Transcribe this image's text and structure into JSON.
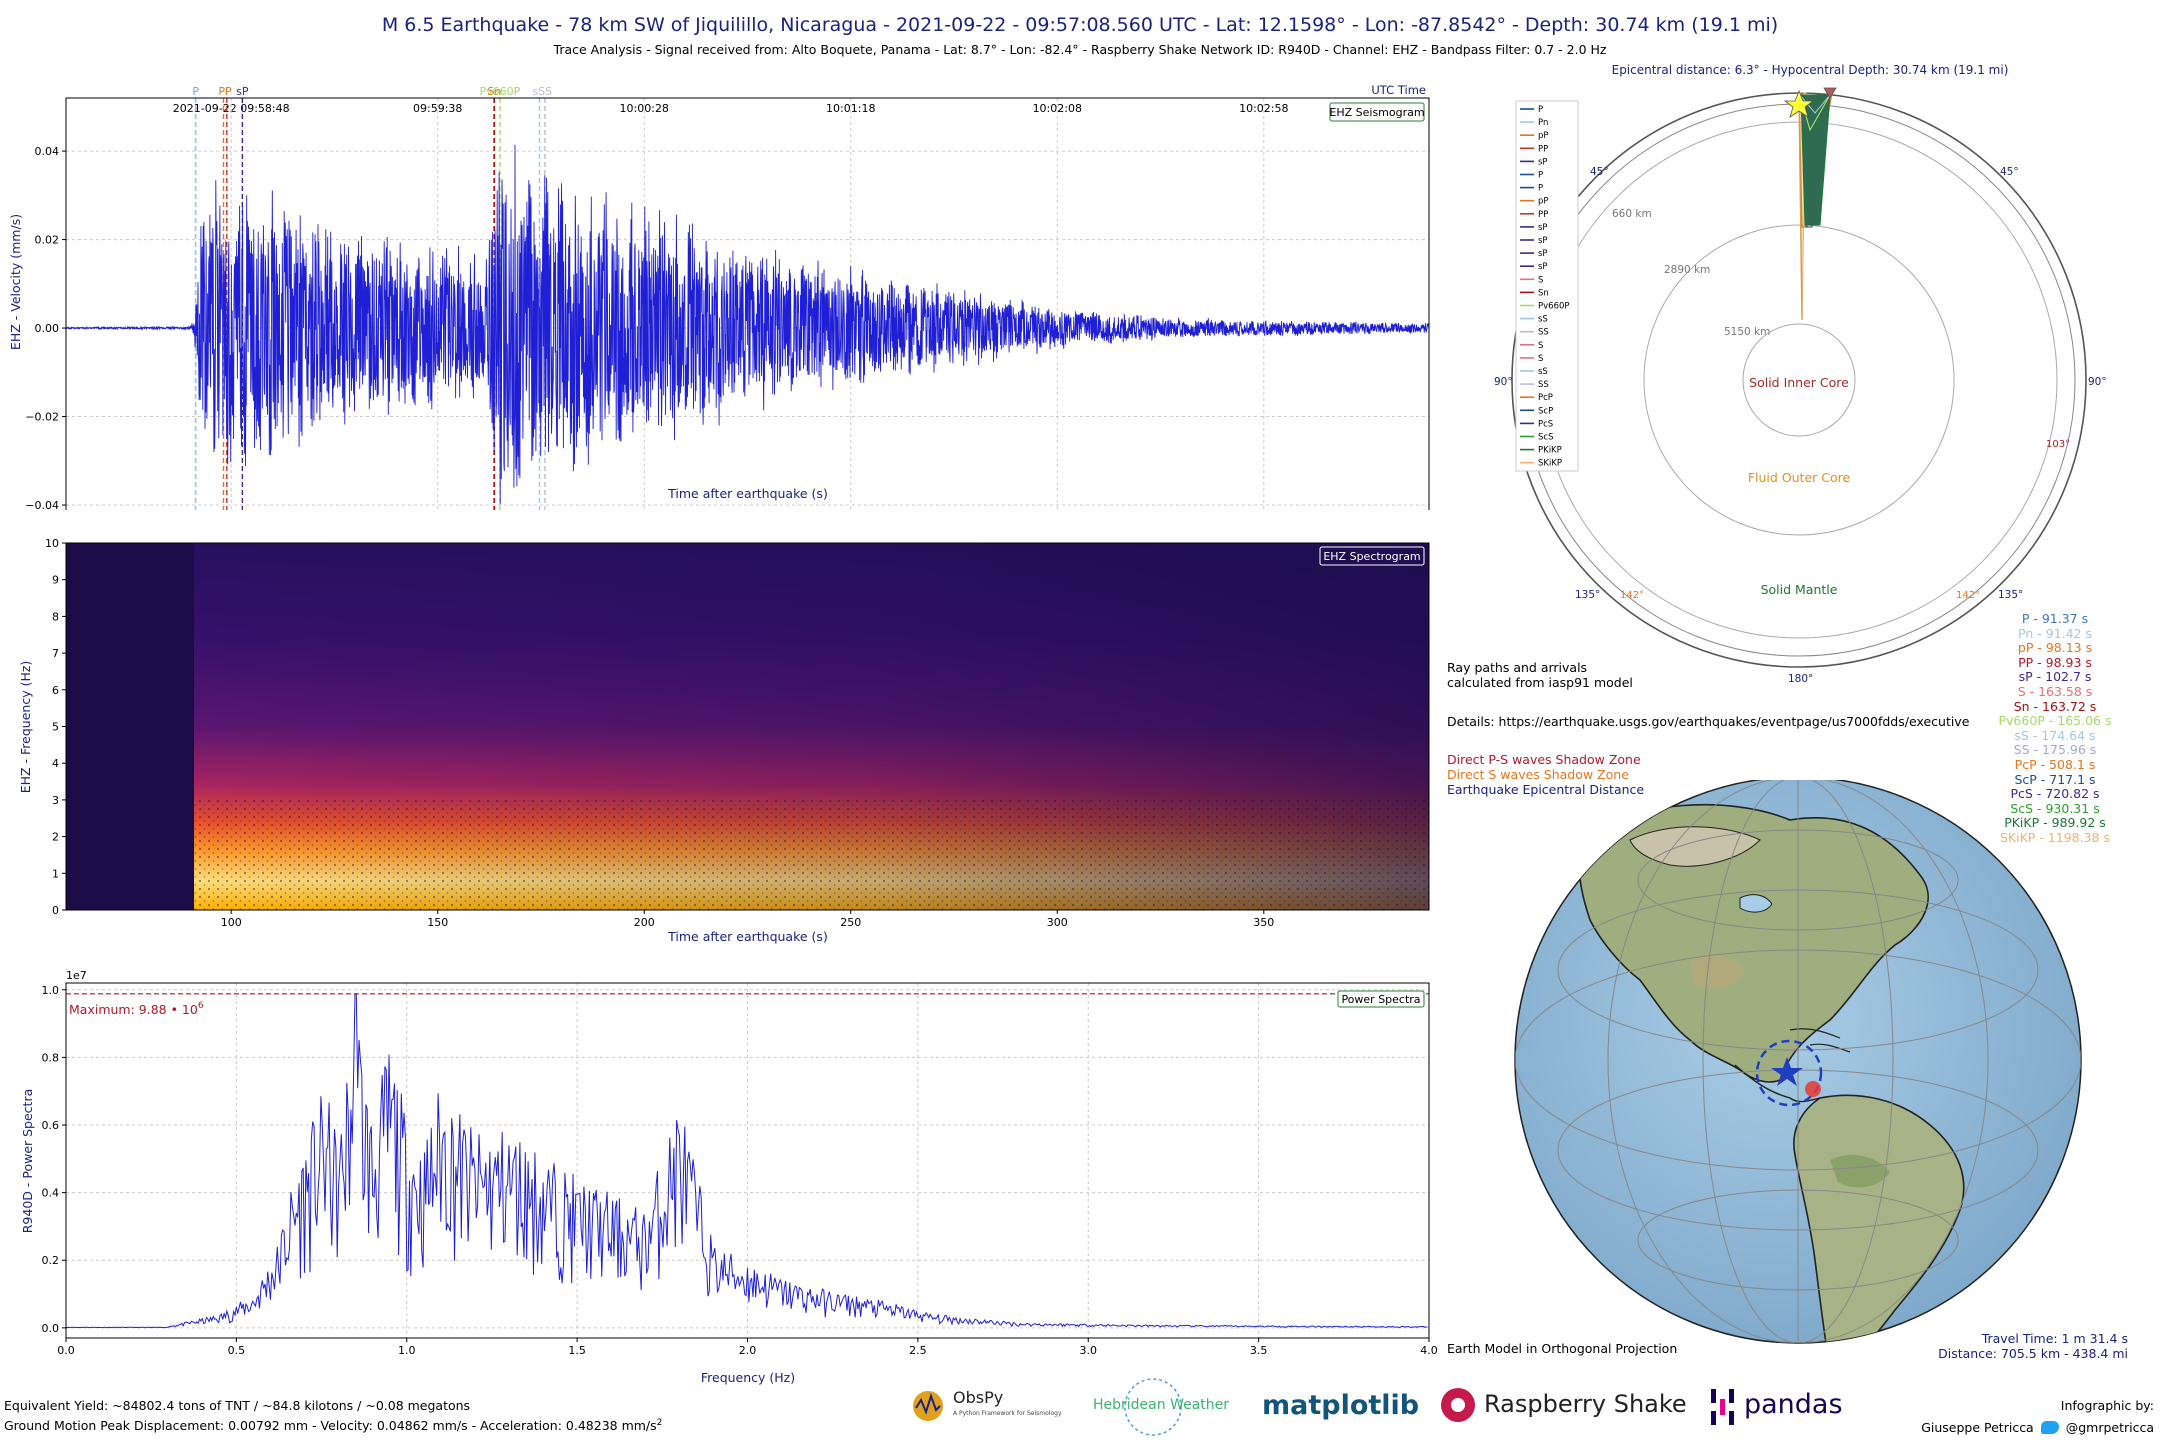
{
  "header": {
    "title": "M 6.5 Earthquake - 78 km SW of Jiquilillo, Nicaragua - 2021-09-22 - 09:57:08.560 UTC - Lat: 12.1598° - Lon: -87.8542° - Depth: 30.74 km (19.1 mi)",
    "subtitle": "Trace Analysis - Signal received from: Alto Boquete, Panama - Lat: 8.7° - Lon: -82.4° - Raspberry Shake Network ID: R940D - Channel: EHZ - Bandpass Filter: 0.7 - 2.0 Hz"
  },
  "chart_data": [
    {
      "type": "line",
      "panel": "seismogram",
      "badge": "EHZ Seismogram",
      "xlabel": "Time after earthquake (s)",
      "ylabel": "EHZ - Velocity (mm/s)",
      "xlim": [
        60,
        390
      ],
      "ylim": [
        -0.047,
        0.052
      ],
      "x_ticks": [
        100,
        150,
        200,
        250,
        300,
        350
      ],
      "y_ticks": [
        -0.04,
        -0.02,
        0.0,
        0.02,
        0.04
      ],
      "y_tick_labels": [
        "−0.04",
        "−0.02",
        "0.00",
        "0.02",
        "0.04"
      ],
      "top_axis_label": "UTC Time",
      "top_ticks": [
        {
          "t": 100,
          "label": "2021-09-22 09:58:48"
        },
        {
          "t": 150,
          "label": "09:59:38"
        },
        {
          "t": 200,
          "label": "10:00:28"
        },
        {
          "t": 250,
          "label": "10:01:18"
        },
        {
          "t": 300,
          "label": "10:02:08"
        },
        {
          "t": 350,
          "label": "10:02:58"
        }
      ],
      "phase_markers": [
        {
          "label": "P",
          "t": 91.37,
          "color": "#6baed6"
        },
        {
          "label": "Pn",
          "t": 91.42,
          "color": "#9ecae1"
        },
        {
          "label": "pP",
          "t": 98.13,
          "color": "#e6761f"
        },
        {
          "label": "PP",
          "t": 98.93,
          "color": "#c0392b"
        },
        {
          "label": "sP",
          "t": 102.7,
          "color": "#3b2a8f"
        },
        {
          "label": "S",
          "t": 163.58,
          "color": "#e8707a"
        },
        {
          "label": "Sn",
          "t": 163.72,
          "color": "#a50f15"
        },
        {
          "label": "Pv660P",
          "t": 165.06,
          "color": "#a6d96a"
        },
        {
          "label": "sS",
          "t": 174.64,
          "color": "#9ecae1"
        },
        {
          "label": "SS",
          "t": 175.96,
          "color": "#bcbddc"
        }
      ],
      "top_phase_labels": [
        {
          "text": "P",
          "t": 91.4,
          "color": "#6baed6"
        },
        {
          "text": "PP",
          "t": 98.5,
          "color": "#e6761f"
        },
        {
          "text": "sP",
          "t": 102.7,
          "color": "#3b2a8f"
        },
        {
          "text": "Pv660P",
          "t": 165.06,
          "color": "#a6d96a"
        },
        {
          "text": "Sn",
          "t": 163.7,
          "color": "#e6761f"
        },
        {
          "text": "sSS",
          "t": 175.3,
          "color": "#bcbddc"
        }
      ],
      "series": [
        {
          "color": "#1f1fd6",
          "envelope": [
            {
              "t": 60,
              "a": 0.0002
            },
            {
              "t": 90,
              "a": 0.0003
            },
            {
              "t": 91,
              "a": 0.003
            },
            {
              "t": 93,
              "a": 0.03
            },
            {
              "t": 96,
              "a": 0.04
            },
            {
              "t": 100,
              "a": 0.033
            },
            {
              "t": 106,
              "a": 0.036
            },
            {
              "t": 115,
              "a": 0.03
            },
            {
              "t": 130,
              "a": 0.024
            },
            {
              "t": 150,
              "a": 0.02
            },
            {
              "t": 162,
              "a": 0.018
            },
            {
              "t": 163.6,
              "a": 0.045
            },
            {
              "t": 170,
              "a": 0.044
            },
            {
              "t": 180,
              "a": 0.036
            },
            {
              "t": 200,
              "a": 0.03
            },
            {
              "t": 220,
              "a": 0.022
            },
            {
              "t": 250,
              "a": 0.015
            },
            {
              "t": 280,
              "a": 0.009
            },
            {
              "t": 300,
              "a": 0.005
            },
            {
              "t": 330,
              "a": 0.0025
            },
            {
              "t": 390,
              "a": 0.0012
            }
          ]
        }
      ]
    },
    {
      "type": "heatmap",
      "panel": "spectrogram",
      "badge": "EHZ Spectrogram",
      "xlabel": "Time after earthquake (s)",
      "ylabel": "EHZ - Frequency (Hz)",
      "xlim": [
        60,
        390
      ],
      "ylim": [
        0,
        10
      ],
      "x_ticks": [
        100,
        150,
        200,
        250,
        300,
        350
      ],
      "y_ticks": [
        0,
        1,
        2,
        3,
        4,
        5,
        6,
        7,
        8,
        9,
        10
      ],
      "onset_t": 91,
      "band_hz": [
        0.7,
        2.0
      ]
    },
    {
      "type": "line",
      "panel": "power-spectra",
      "badge": "Power Spectra",
      "xlabel": "Frequency (Hz)",
      "ylabel": "R940D - Power Spectra",
      "exponent_label": "1e7",
      "xlim": [
        0,
        4
      ],
      "ylim": [
        -0.03,
        1.02
      ],
      "x_ticks": [
        0.0,
        0.5,
        1.0,
        1.5,
        2.0,
        2.5,
        3.0,
        3.5,
        4.0
      ],
      "y_ticks": [
        0.0,
        0.2,
        0.4,
        0.6,
        0.8,
        1.0
      ],
      "maximum_value": 0.988,
      "maximum_label": "Maximum: 9.88 • 10",
      "maximum_exp": "6",
      "series": [
        {
          "color": "#1f1fd6",
          "peaks": [
            {
              "f": 0.3,
              "p": 0.005
            },
            {
              "f": 0.45,
              "p": 0.04
            },
            {
              "f": 0.55,
              "p": 0.1
            },
            {
              "f": 0.62,
              "p": 0.25
            },
            {
              "f": 0.66,
              "p": 0.42
            },
            {
              "f": 0.7,
              "p": 0.55
            },
            {
              "f": 0.76,
              "p": 0.72
            },
            {
              "f": 0.8,
              "p": 0.55
            },
            {
              "f": 0.85,
              "p": 0.988
            },
            {
              "f": 0.9,
              "p": 0.62
            },
            {
              "f": 0.95,
              "p": 0.86
            },
            {
              "f": 1.0,
              "p": 0.62
            },
            {
              "f": 1.05,
              "p": 0.54
            },
            {
              "f": 1.1,
              "p": 0.74
            },
            {
              "f": 1.2,
              "p": 0.58
            },
            {
              "f": 1.3,
              "p": 0.6
            },
            {
              "f": 1.4,
              "p": 0.52
            },
            {
              "f": 1.5,
              "p": 0.45
            },
            {
              "f": 1.6,
              "p": 0.4
            },
            {
              "f": 1.7,
              "p": 0.35
            },
            {
              "f": 1.8,
              "p": 0.69
            },
            {
              "f": 1.9,
              "p": 0.25
            },
            {
              "f": 2.0,
              "p": 0.2
            },
            {
              "f": 2.1,
              "p": 0.15
            },
            {
              "f": 2.2,
              "p": 0.12
            },
            {
              "f": 2.3,
              "p": 0.1
            },
            {
              "f": 2.4,
              "p": 0.08
            },
            {
              "f": 2.55,
              "p": 0.04
            },
            {
              "f": 2.8,
              "p": 0.015
            },
            {
              "f": 3.2,
              "p": 0.008
            },
            {
              "f": 4.0,
              "p": 0.004
            }
          ]
        }
      ]
    },
    {
      "type": "diagram",
      "panel": "ray-paths",
      "title": "Epicentral distance: 6.3° - Hypocentral Depth: 30.74 km (19.1 mi)",
      "angle_labels": [
        "45°",
        "45°",
        "90°",
        "90°",
        "135°",
        "135°",
        "180°"
      ],
      "shadow_labels": [
        "103°",
        "142°",
        "142°"
      ],
      "depth_labels": [
        "660 km",
        "2890 km",
        "5150 km"
      ],
      "regions": [
        "Solid Inner Core",
        "Fluid Outer Core",
        "Solid Mantle"
      ],
      "legend": [
        {
          "name": "P",
          "color": "#1f4e8c"
        },
        {
          "name": "Pn",
          "color": "#9ecae1"
        },
        {
          "name": "pP",
          "color": "#e6761f"
        },
        {
          "name": "PP",
          "color": "#c0392b"
        },
        {
          "name": "sP",
          "color": "#3b2a8f"
        },
        {
          "name": "P",
          "color": "#1f4e8c"
        },
        {
          "name": "P",
          "color": "#1f4e8c"
        },
        {
          "name": "pP",
          "color": "#e6761f"
        },
        {
          "name": "PP",
          "color": "#c0392b"
        },
        {
          "name": "sP",
          "color": "#3b2a8f"
        },
        {
          "name": "sP",
          "color": "#3b2a8f"
        },
        {
          "name": "sP",
          "color": "#3b2a8f"
        },
        {
          "name": "sP",
          "color": "#3b2a8f"
        },
        {
          "name": "S",
          "color": "#e8707a"
        },
        {
          "name": "Sn",
          "color": "#a50f15"
        },
        {
          "name": "Pv660P",
          "color": "#a6d96a"
        },
        {
          "name": "sS",
          "color": "#9ecae1"
        },
        {
          "name": "SS",
          "color": "#bcbddc"
        },
        {
          "name": "S",
          "color": "#e8707a"
        },
        {
          "name": "S",
          "color": "#e8707a"
        },
        {
          "name": "sS",
          "color": "#9ecae1"
        },
        {
          "name": "SS",
          "color": "#bcbddc"
        },
        {
          "name": "PcP",
          "color": "#e6761f"
        },
        {
          "name": "ScP",
          "color": "#1f4e8c"
        },
        {
          "name": "PcS",
          "color": "#3b2a8f"
        },
        {
          "name": "ScS",
          "color": "#2ca02c"
        },
        {
          "name": "PKiKP",
          "color": "#1b7837"
        },
        {
          "name": "SKiKP",
          "color": "#f4b26b"
        }
      ]
    }
  ],
  "arrivals": [
    {
      "text": "P - 91.37 s",
      "color": "#3a78c2"
    },
    {
      "text": "Pn - 91.42 s",
      "color": "#9ecae1"
    },
    {
      "text": "pP - 98.13 s",
      "color": "#e6761f"
    },
    {
      "text": "PP - 98.93 s",
      "color": "#b2182b"
    },
    {
      "text": "sP - 102.7 s",
      "color": "#3b2a8f"
    },
    {
      "text": "S - 163.58 s",
      "color": "#e8707a"
    },
    {
      "text": "Sn - 163.72 s",
      "color": "#a50f15"
    },
    {
      "text": "Pv660P - 165.06 s",
      "color": "#a6d96a"
    },
    {
      "text": "sS - 174.64 s",
      "color": "#9ecae1"
    },
    {
      "text": "SS - 175.96 s",
      "color": "#a6a6d0"
    },
    {
      "text": "PcP - 508.1 s",
      "color": "#e6761f"
    },
    {
      "text": "ScP - 717.1 s",
      "color": "#1f4e8c"
    },
    {
      "text": "PcS - 720.82 s",
      "color": "#3b2a8f"
    },
    {
      "text": "ScS - 930.31 s",
      "color": "#2ca02c"
    },
    {
      "text": "PKiKP - 989.92 s",
      "color": "#1b7837"
    },
    {
      "text": "SKiKP - 1198.38 s",
      "color": "#f4b26b"
    }
  ],
  "notes": {
    "ray_model_1": "Ray paths and arrivals",
    "ray_model_2": "calculated from iasp91 model",
    "details": "Details: https://earthquake.usgs.gov/earthquakes/eventpage/us7000fdds/executive",
    "shadow_ps": "Direct P-S waves Shadow Zone",
    "shadow_s": "Direct S waves Shadow Zone",
    "epicentral": "Earthquake Epicentral Distance",
    "earth_model": "Earth Model in Orthogonal Projection",
    "travel_time": "Travel Time: 1 m 31.4 s",
    "distance": "Distance: 705.5 km - 438.4 mi"
  },
  "footer": {
    "yield": "Equivalent Yield: ~84802.4 tons of TNT / ~84.8 kilotons / ~0.08 megatons",
    "motion": "Ground Motion Peak Displacement: 0.00792 mm - Velocity: 0.04862 mm/s - Acceleration: 0.48238  mm/s",
    "motion_exp": "2",
    "infographic_by": "Infographic by:",
    "author": "Giuseppe Petricca",
    "handle": "@gmrpetricca"
  },
  "logos": {
    "obspy": "ObsPy",
    "obspy_tag": "A Python Framework for Seismology",
    "hebridean": "Hebridean Weather",
    "matplotlib": "matplotlib",
    "raspberry": "Raspberry Shake",
    "pandas": "pandas"
  },
  "colors": {
    "title": "#1a237e",
    "axis_label": "#1a237e",
    "shadow_ps": "#b2182b",
    "shadow_s": "#e6761f",
    "epicentral": "#1a237e",
    "max_line": "#b2182b"
  }
}
